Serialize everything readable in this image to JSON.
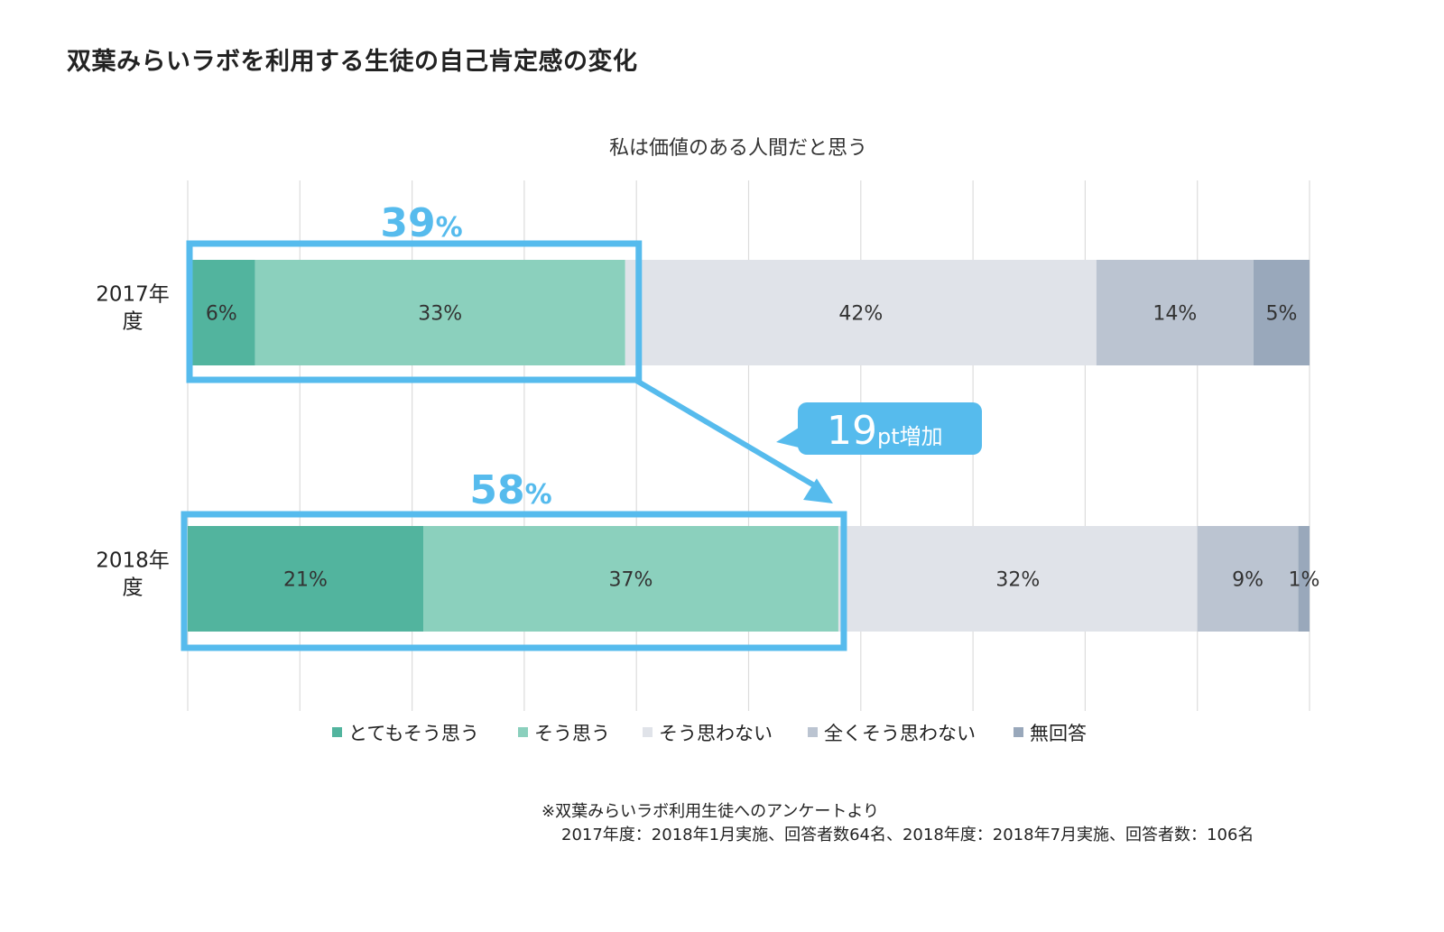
{
  "page": {
    "title": "双葉みらいラボを利用する生徒の自己肯定感の変化",
    "footnote_line1": "※双葉みらいラボ利用生徒へのアンケートより",
    "footnote_line2": "2017年度：2018年1月実施、回答者数64名、2018年度：2018年7月実施、回答者数：106名"
  },
  "chart_data": {
    "type": "bar",
    "orientation": "horizontal",
    "stacked": true,
    "percent_stacked": true,
    "title": "私は価値のある人間だと思う",
    "categories": [
      "2017年\n度",
      "2018年\n度"
    ],
    "xlim": [
      0,
      100
    ],
    "grid": true,
    "legend_position": "bottom",
    "series": [
      {
        "name": "とてもそう思う",
        "values": [
          6,
          21
        ],
        "labels": [
          "6%",
          "21%"
        ],
        "color": "#52b49e"
      },
      {
        "name": "そう思う",
        "values": [
          33,
          37
        ],
        "labels": [
          "33%",
          "37%"
        ],
        "color": "#8bd0bd"
      },
      {
        "name": "そう思わない",
        "values": [
          42,
          32
        ],
        "labels": [
          "42%",
          "32%"
        ],
        "color": "#e0e3e9"
      },
      {
        "name": "全くそう思わない",
        "values": [
          14,
          9
        ],
        "labels": [
          "14%",
          "9%"
        ],
        "color": "#bbc4d1"
      },
      {
        "name": "無回答",
        "values": [
          5,
          1
        ],
        "labels": [
          "5%",
          "1%"
        ],
        "color": "#99a8bb"
      }
    ],
    "annotations": {
      "highlight_2017_label": "39",
      "highlight_2018_label": "58",
      "percent_sign": "%",
      "increase_number": "19",
      "increase_unit": "pt",
      "increase_text": "増加",
      "highlight_color": "#56bbed"
    }
  }
}
